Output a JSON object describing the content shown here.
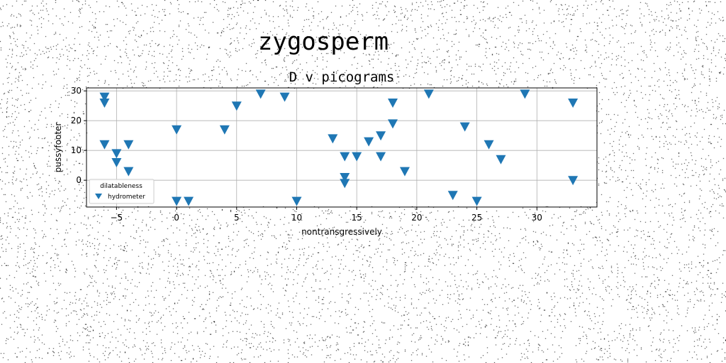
{
  "chart_data": {
    "type": "scatter",
    "suptitle": "zygosperm",
    "title": "D v picograms",
    "xlabel": "nontransgressively",
    "ylabel": "pussyfooter",
    "xlim": [
      -7.5,
      35
    ],
    "ylim": [
      -9,
      31
    ],
    "xticks": [
      -5,
      0,
      5,
      10,
      15,
      20,
      25,
      30
    ],
    "yticks": [
      0,
      10,
      20,
      30
    ],
    "xtick_labels": [
      "−5",
      "0",
      "5",
      "10",
      "15",
      "20",
      "25",
      "30"
    ],
    "ytick_labels": [
      "0",
      "10",
      "20",
      "30"
    ],
    "grid": true,
    "legend": {
      "title": "dilatableness",
      "position": "lower-left"
    },
    "marker": "triangle-down",
    "color": "#1f77b4",
    "series": [
      {
        "name": "hydrometer",
        "points": [
          [
            -6,
            28
          ],
          [
            -6,
            26
          ],
          [
            -6,
            12
          ],
          [
            -5,
            9
          ],
          [
            -5,
            6
          ],
          [
            -4,
            12
          ],
          [
            -4,
            3
          ],
          [
            0,
            17
          ],
          [
            0,
            -7
          ],
          [
            1,
            -7
          ],
          [
            4,
            17
          ],
          [
            5,
            25
          ],
          [
            7,
            29
          ],
          [
            9,
            28
          ],
          [
            10,
            -7
          ],
          [
            13,
            14
          ],
          [
            14,
            8
          ],
          [
            14,
            1
          ],
          [
            14,
            -1
          ],
          [
            15,
            8
          ],
          [
            16,
            13
          ],
          [
            17,
            15
          ],
          [
            17,
            8
          ],
          [
            18,
            26
          ],
          [
            18,
            19
          ],
          [
            19,
            3
          ],
          [
            21,
            29
          ],
          [
            23,
            -5
          ],
          [
            24,
            18
          ],
          [
            25,
            -7
          ],
          [
            26,
            12
          ],
          [
            27,
            7
          ],
          [
            29,
            29
          ],
          [
            33,
            26
          ],
          [
            33,
            0
          ]
        ]
      }
    ]
  }
}
